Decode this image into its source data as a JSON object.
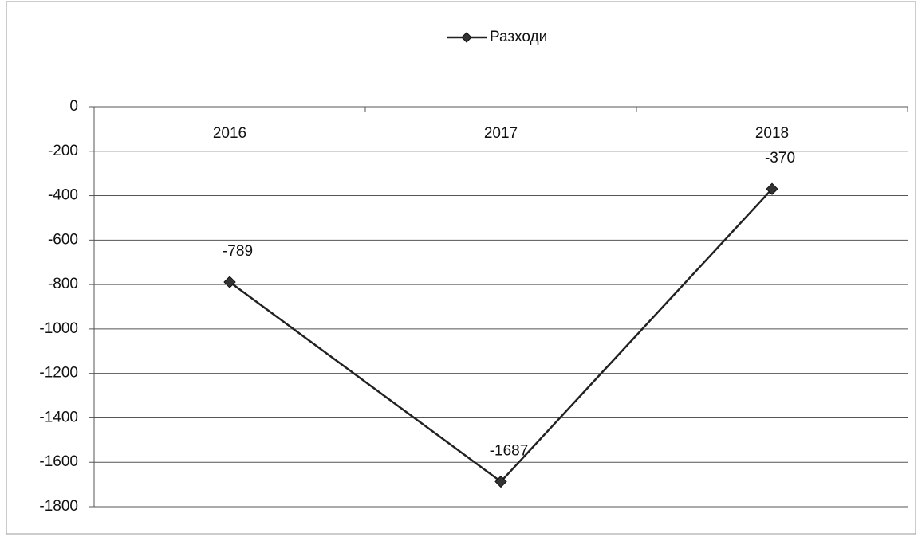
{
  "chart_data": {
    "type": "line",
    "categories": [
      "2016",
      "2017",
      "2018"
    ],
    "series": [
      {
        "name": "Разходи",
        "color": "#222222",
        "values": [
          -789,
          -1687,
          -370
        ]
      }
    ],
    "ylim": [
      -1800,
      0
    ],
    "yticks": [
      0,
      -200,
      -400,
      -600,
      -800,
      -1000,
      -1200,
      -1400,
      -1600,
      -1800
    ],
    "grid": true,
    "legend": "top",
    "data_labels": true
  }
}
